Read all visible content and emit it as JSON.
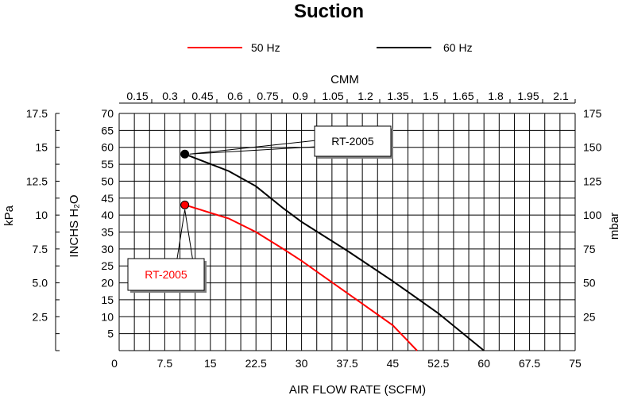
{
  "chart_data": {
    "type": "line",
    "title": "Suction",
    "xlabel": "AIR FLOW RATE (SCFM)",
    "x_ticks": [
      "0",
      "7.5",
      "15",
      "22.5",
      "30",
      "37.5",
      "45",
      "52.5",
      "60",
      "67.5",
      "75"
    ],
    "xlim": [
      0,
      75
    ],
    "ylabel": "INCHS H₂O",
    "y_ticks": [
      "5",
      "10",
      "15",
      "20",
      "25",
      "30",
      "35",
      "40",
      "45",
      "50",
      "55",
      "60",
      "65",
      "70"
    ],
    "ylim": [
      0,
      70
    ],
    "top_axis": {
      "label": "CMM",
      "ticks": [
        "0.15",
        "0.3",
        "0.45",
        "0.6",
        "0.75",
        "0.9",
        "1.05",
        "1.2",
        "1.35",
        "1.5",
        "1.65",
        "1.8",
        "1.95",
        "2.1"
      ]
    },
    "left_axis": {
      "label": "kPa",
      "ticks": [
        "2.5",
        "5.0",
        "7.5",
        "10",
        "12.5",
        "15",
        "17.5"
      ]
    },
    "right_axis": {
      "label": "mbar",
      "ticks": [
        "25",
        "50",
        "75",
        "100",
        "125",
        "150",
        "175"
      ]
    },
    "grid": true,
    "legend_position": "top",
    "series": [
      {
        "name": "50 Hz",
        "color": "#ff0000",
        "x": [
          10.8,
          18,
          22.5,
          27,
          30,
          37.5,
          45,
          49
        ],
        "y": [
          43,
          39,
          35,
          30,
          26.5,
          17,
          7.5,
          0
        ]
      },
      {
        "name": "60 Hz",
        "color": "#000000",
        "x": [
          10.8,
          18,
          22.5,
          27,
          30,
          37.5,
          45,
          52.5,
          60
        ],
        "y": [
          58,
          53,
          48.5,
          42,
          38,
          29.5,
          20.5,
          11,
          0
        ]
      }
    ],
    "annotations": [
      {
        "text": "RT-2005",
        "series": "60 Hz",
        "x": 10.8,
        "y": 58,
        "color": "#000000"
      },
      {
        "text": "RT-2005",
        "series": "50 Hz",
        "x": 10.8,
        "y": 43,
        "color": "#ff0000"
      }
    ]
  }
}
